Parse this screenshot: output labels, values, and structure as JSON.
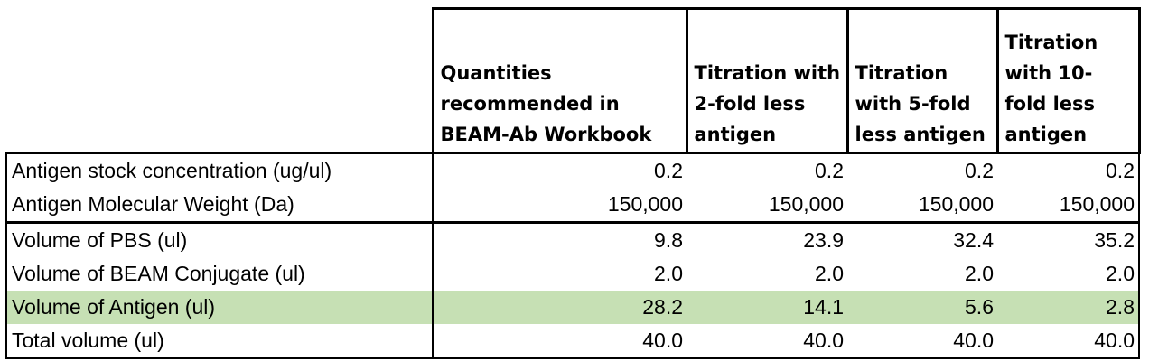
{
  "table": {
    "headers": [
      "",
      "Quantities recommended in BEAM-Ab Workbook",
      "Titration with 2-fold less antigen",
      "Titration with 5-fold less antigen",
      "Titration with 10-fold less antigen"
    ],
    "rows": [
      {
        "label": "Antigen stock concentration (ug/ul)",
        "values": [
          "0.2",
          "0.2",
          "0.2",
          "0.2"
        ]
      },
      {
        "label": "Antigen Molecular Weight (Da)",
        "values": [
          "150,000",
          "150,000",
          "150,000",
          "150,000"
        ]
      },
      {
        "label": "Volume of PBS (ul)",
        "values": [
          "9.8",
          "23.9",
          "32.4",
          "35.2"
        ]
      },
      {
        "label": "Volume of BEAM Conjugate (ul)",
        "values": [
          "2.0",
          "2.0",
          "2.0",
          "2.0"
        ]
      },
      {
        "label": "Volume of Antigen (ul)",
        "values": [
          "28.2",
          "14.1",
          "5.6",
          "2.8"
        ]
      },
      {
        "label": "Total volume (ul)",
        "values": [
          "40.0",
          "40.0",
          "40.0",
          "40.0"
        ]
      }
    ],
    "highlight_color": "#c6e0b4"
  }
}
